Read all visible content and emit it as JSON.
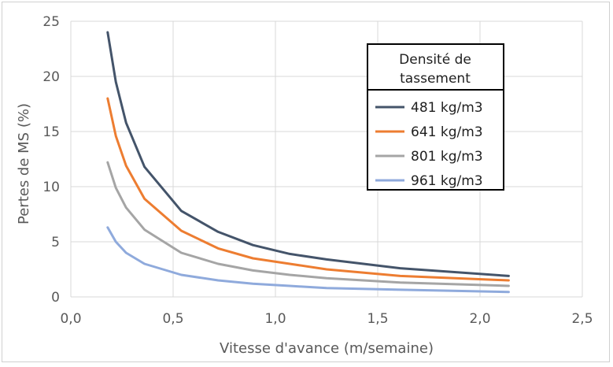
{
  "chart_data": {
    "type": "line",
    "title": "",
    "xlabel": "Vitesse d'avance (m/semaine)",
    "ylabel": "Pertes de MS (%)",
    "xlim": [
      0,
      2.5
    ],
    "ylim": [
      0,
      25
    ],
    "x_ticks": [
      "0,0",
      "0,5",
      "1,0",
      "1,5",
      "2,0",
      "2,5"
    ],
    "y_ticks": [
      "0",
      "5",
      "10",
      "15",
      "20",
      "25"
    ],
    "x_tick_values": [
      0,
      0.5,
      1.0,
      1.5,
      2.0,
      2.5
    ],
    "y_tick_values": [
      0,
      5,
      10,
      15,
      20,
      25
    ],
    "grid": true,
    "legend": {
      "title": "Densité de tassement",
      "placement": "top-right"
    },
    "series": [
      {
        "name": "481 kg/m3",
        "color": "#44546a",
        "x": [
          0.18,
          0.22,
          0.27,
          0.36,
          0.54,
          0.72,
          0.89,
          1.07,
          1.25,
          1.61,
          2.14
        ],
        "y": [
          24.0,
          19.5,
          15.8,
          11.8,
          7.8,
          5.9,
          4.7,
          3.9,
          3.4,
          2.6,
          1.9
        ]
      },
      {
        "name": "641 kg/m3",
        "color": "#ed7d31",
        "x": [
          0.18,
          0.22,
          0.27,
          0.36,
          0.54,
          0.72,
          0.89,
          1.07,
          1.25,
          1.61,
          2.14
        ],
        "y": [
          18.0,
          14.6,
          11.9,
          8.9,
          6.0,
          4.4,
          3.5,
          3.0,
          2.5,
          1.9,
          1.5
        ]
      },
      {
        "name": "801 kg/m3",
        "color": "#a5a5a5",
        "x": [
          0.18,
          0.22,
          0.27,
          0.36,
          0.54,
          0.72,
          0.89,
          1.07,
          1.25,
          1.61,
          2.14
        ],
        "y": [
          12.2,
          9.9,
          8.1,
          6.1,
          4.0,
          3.0,
          2.4,
          2.0,
          1.7,
          1.3,
          1.0
        ]
      },
      {
        "name": "961 kg/m3",
        "color": "#8faadc",
        "x": [
          0.18,
          0.22,
          0.27,
          0.36,
          0.54,
          0.72,
          0.89,
          1.07,
          1.25,
          1.61,
          2.14
        ],
        "y": [
          6.3,
          5.0,
          4.0,
          3.0,
          2.0,
          1.5,
          1.2,
          1.0,
          0.8,
          0.65,
          0.45
        ]
      }
    ]
  }
}
